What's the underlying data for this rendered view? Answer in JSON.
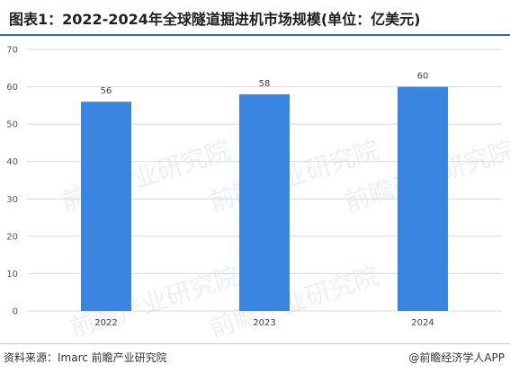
{
  "chart_data": {
    "type": "bar",
    "title": "图表1：2022-2024年全球隧道掘进机市场规模(单位：亿美元)",
    "categories": [
      "2022",
      "2023",
      "2024"
    ],
    "values": [
      56,
      58,
      60
    ],
    "data_labels": [
      "56",
      "58",
      "60"
    ],
    "xlabel": "",
    "ylabel": "",
    "ylim": [
      0,
      70
    ],
    "yticks": [
      0,
      10,
      20,
      30,
      40,
      50,
      60,
      70
    ],
    "grid": true,
    "bar_color": "#3a85e0",
    "grid_color": "#d9d9d9"
  },
  "footer": {
    "source": "资料来源：Imarc 前瞻产业研究院",
    "credit": "@前瞻经济学人APP"
  },
  "watermark": {
    "text": "前瞻产业研究院"
  },
  "colors": {
    "title_rule": "#2f6bb5",
    "bar": "#3a85e0"
  }
}
